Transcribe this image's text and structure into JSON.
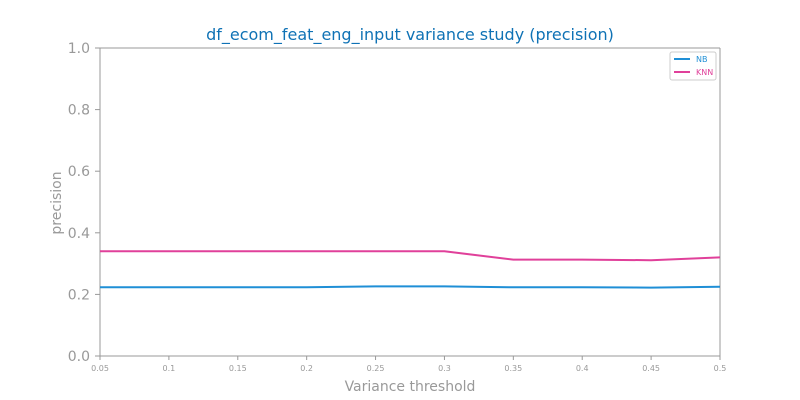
{
  "chart_data": {
    "type": "line",
    "title": "df_ecom_feat_eng_input variance study (precision)",
    "xlabel": "Variance threshold",
    "ylabel": "precision",
    "x": [
      0.05,
      0.1,
      0.15,
      0.2,
      0.25,
      0.3,
      0.35,
      0.4,
      0.45,
      0.5
    ],
    "x_tick_labels": [
      "0.05",
      "0.1",
      "0.15",
      "0.2",
      "0.25",
      "0.3",
      "0.35",
      "0.4",
      "0.45",
      "0.5"
    ],
    "ylim": [
      0.0,
      1.0
    ],
    "y_ticks": [
      0.0,
      0.2,
      0.4,
      0.6,
      0.8,
      1.0
    ],
    "y_tick_labels": [
      "0.0",
      "0.2",
      "0.4",
      "0.6",
      "0.8",
      "1.0"
    ],
    "grid": false,
    "legend_position": "top-right",
    "series": [
      {
        "name": "NB",
        "color": "#1f8fd6",
        "values": [
          0.223,
          0.223,
          0.223,
          0.223,
          0.226,
          0.226,
          0.223,
          0.223,
          0.222,
          0.225
        ]
      },
      {
        "name": "KNN",
        "color": "#e0409a",
        "values": [
          0.34,
          0.34,
          0.34,
          0.34,
          0.34,
          0.34,
          0.313,
          0.313,
          0.311,
          0.32
        ]
      }
    ],
    "colors": {
      "title": "#0f72b5",
      "axis": "#999999",
      "text": "#999999",
      "legend_border": "#cccccc"
    }
  }
}
